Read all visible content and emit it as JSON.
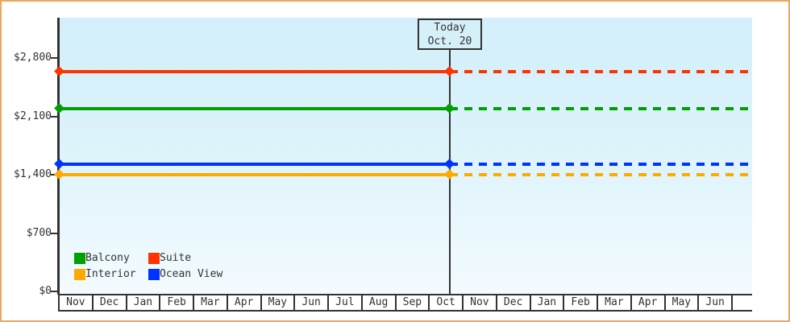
{
  "frame": {
    "border_color": "#eca85a",
    "background": "#ffffff",
    "plot_bg_top": "#d3effa",
    "plot_bg_bottom": "#f3fbfe",
    "axis_color": "#333333"
  },
  "today_marker": {
    "line1": "Today",
    "line2": "Oct. 20"
  },
  "y_axis": {
    "ticks": [
      {
        "label": "$0",
        "value": 0
      },
      {
        "label": "$700",
        "value": 700
      },
      {
        "label": "$1,400",
        "value": 1400
      },
      {
        "label": "$2,100",
        "value": 2100
      },
      {
        "label": "$2,800",
        "value": 2800
      }
    ]
  },
  "legend": {
    "rows": [
      [
        {
          "label": "Balcony",
          "color": "#00a000"
        },
        {
          "label": "Suite",
          "color": "#ff3300"
        }
      ],
      [
        {
          "label": "Interior",
          "color": "#ffaa00"
        },
        {
          "label": "Ocean View",
          "color": "#0033ff"
        }
      ]
    ]
  },
  "chart_data": {
    "type": "line",
    "title": "",
    "xlabel": "",
    "ylabel": "",
    "ylim": [
      0,
      2900
    ],
    "grid": false,
    "legend_position": "bottom-left inside plot",
    "x_categories": [
      "Nov",
      "Dec",
      "Jan",
      "Feb",
      "Mar",
      "Apr",
      "May",
      "Jun",
      "Jul",
      "Aug",
      "Sep",
      "Oct",
      "Nov",
      "Dec",
      "Jan",
      "Feb",
      "Mar",
      "Apr",
      "May",
      "Jun"
    ],
    "x_trailing_empty_cell": true,
    "today": {
      "label": [
        "Today",
        "Oct. 20"
      ],
      "x_category_index": 11,
      "x_fraction_of_cell": 0.64
    },
    "series": [
      {
        "name": "Suite",
        "color": "#ff3300",
        "value": 2640,
        "constant": true,
        "style": "solid before today, dashed projection after, diamond markers at start and today"
      },
      {
        "name": "Balcony",
        "color": "#00a000",
        "value": 2190,
        "constant": true,
        "style": "solid before today, dashed projection after, diamond markers at start and today"
      },
      {
        "name": "Ocean View",
        "color": "#0033ff",
        "value": 1530,
        "constant": true,
        "style": "solid before today, dashed projection after, diamond markers at start and today"
      },
      {
        "name": "Interior",
        "color": "#ffaa00",
        "value": 1400,
        "constant": true,
        "style": "solid before today, dashed projection after, diamond markers at start and today"
      }
    ]
  }
}
